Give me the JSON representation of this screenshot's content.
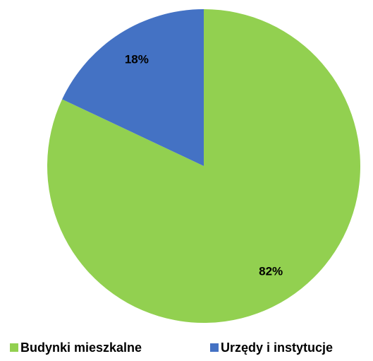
{
  "chart_data": {
    "type": "pie",
    "categories": [
      "Budynki mieszkalne",
      "Urzędy i instytucje"
    ],
    "values": [
      82,
      18
    ],
    "value_labels": [
      "82%",
      "18%"
    ],
    "colors": [
      "#92d050",
      "#4472c4"
    ],
    "legend": "bottom"
  }
}
